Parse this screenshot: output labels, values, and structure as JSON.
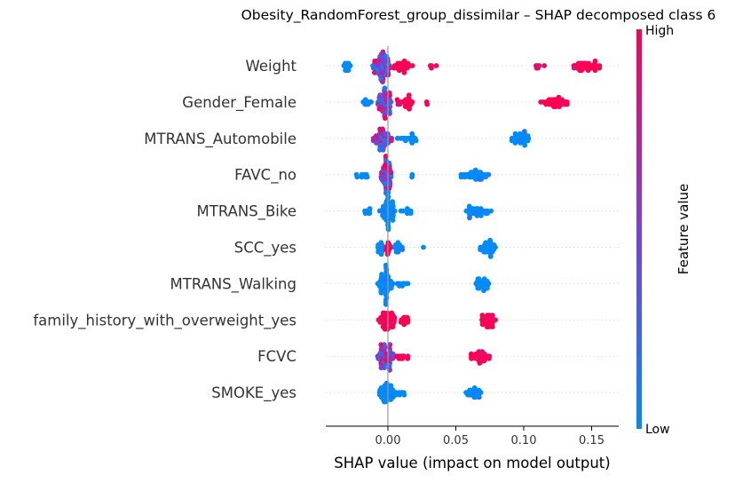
{
  "chart_data": {
    "type": "scatter",
    "subtype": "shap-beeswarm",
    "title": "Obesity_RandomForest_group_dissimilar – SHAP decomposed class 6",
    "xlabel": "SHAP value (impact on model output)",
    "ylabel": "",
    "xlim": [
      -0.045,
      0.165
    ],
    "x_ticks": [
      0.0,
      0.05,
      0.1,
      0.15
    ],
    "x_tick_labels": [
      "0.00",
      "0.05",
      "0.10",
      "0.15"
    ],
    "colorbar": {
      "label": "Feature value",
      "high_label": "High",
      "low_label": "Low",
      "low_color": "#008bfb",
      "high_color": "#ff0052"
    },
    "grid": false,
    "zero_line": true,
    "features": [
      {
        "name": "Weight",
        "clusters": [
          {
            "min": -0.034,
            "max": -0.026,
            "n": 14,
            "color": "low"
          },
          {
            "min": -0.012,
            "max": 0.003,
            "n": 80,
            "color": "mixed"
          },
          {
            "min": 0.003,
            "max": 0.018,
            "n": 26,
            "color": "high"
          },
          {
            "min": 0.025,
            "max": 0.041,
            "n": 4,
            "color": "high"
          },
          {
            "min": 0.104,
            "max": 0.118,
            "n": 6,
            "color": "high"
          },
          {
            "min": 0.133,
            "max": 0.157,
            "n": 40,
            "color": "high"
          }
        ]
      },
      {
        "name": "Gender_Female",
        "clusters": [
          {
            "min": -0.02,
            "max": -0.01,
            "n": 10,
            "color": "low"
          },
          {
            "min": -0.008,
            "max": 0.004,
            "n": 60,
            "color": "mixed"
          },
          {
            "min": 0.004,
            "max": 0.022,
            "n": 22,
            "color": "high"
          },
          {
            "min": 0.027,
            "max": 0.033,
            "n": 2,
            "color": "high"
          },
          {
            "min": 0.112,
            "max": 0.135,
            "n": 40,
            "color": "high"
          }
        ]
      },
      {
        "name": "MTRANS_Automobile",
        "clusters": [
          {
            "min": -0.012,
            "max": 0.003,
            "n": 55,
            "color": "mixed"
          },
          {
            "min": 0.005,
            "max": 0.026,
            "n": 18,
            "color": "low"
          },
          {
            "min": 0.09,
            "max": 0.106,
            "n": 32,
            "color": "low"
          }
        ]
      },
      {
        "name": "FAVC_no",
        "clusters": [
          {
            "min": -0.026,
            "max": -0.012,
            "n": 8,
            "color": "low"
          },
          {
            "min": -0.006,
            "max": 0.004,
            "n": 60,
            "color": "mixed"
          },
          {
            "min": 0.016,
            "max": 0.02,
            "n": 2,
            "color": "low"
          },
          {
            "min": 0.052,
            "max": 0.076,
            "n": 35,
            "color": "low"
          }
        ]
      },
      {
        "name": "MTRANS_Bike",
        "clusters": [
          {
            "min": -0.022,
            "max": -0.01,
            "n": 8,
            "color": "low"
          },
          {
            "min": -0.006,
            "max": 0.006,
            "n": 60,
            "color": "low"
          },
          {
            "min": 0.008,
            "max": 0.02,
            "n": 8,
            "color": "low"
          },
          {
            "min": 0.055,
            "max": 0.076,
            "n": 35,
            "color": "low"
          }
        ]
      },
      {
        "name": "SCC_yes",
        "clusters": [
          {
            "min": -0.01,
            "max": 0.0,
            "n": 20,
            "color": "low"
          },
          {
            "min": -0.004,
            "max": 0.004,
            "n": 12,
            "color": "high"
          },
          {
            "min": 0.003,
            "max": 0.012,
            "n": 16,
            "color": "low"
          },
          {
            "min": 0.025,
            "max": 0.028,
            "n": 1,
            "color": "low"
          },
          {
            "min": 0.068,
            "max": 0.08,
            "n": 35,
            "color": "low"
          }
        ]
      },
      {
        "name": "MTRANS_Walking",
        "clusters": [
          {
            "min": -0.008,
            "max": 0.004,
            "n": 60,
            "color": "low"
          },
          {
            "min": 0.005,
            "max": 0.016,
            "n": 8,
            "color": "low"
          },
          {
            "min": 0.063,
            "max": 0.076,
            "n": 30,
            "color": "low"
          }
        ]
      },
      {
        "name": "family_history_with_overweight_yes",
        "clusters": [
          {
            "min": -0.008,
            "max": 0.006,
            "n": 55,
            "color": "high"
          },
          {
            "min": 0.006,
            "max": 0.017,
            "n": 14,
            "color": "high"
          },
          {
            "min": 0.067,
            "max": 0.08,
            "n": 32,
            "color": "high"
          }
        ]
      },
      {
        "name": "FCVC",
        "clusters": [
          {
            "min": -0.008,
            "max": 0.006,
            "n": 60,
            "color": "mixed"
          },
          {
            "min": 0.006,
            "max": 0.016,
            "n": 10,
            "color": "high"
          },
          {
            "min": 0.059,
            "max": 0.076,
            "n": 32,
            "color": "high"
          }
        ]
      },
      {
        "name": "SMOKE_yes",
        "clusters": [
          {
            "min": -0.008,
            "max": 0.006,
            "n": 55,
            "color": "low"
          },
          {
            "min": 0.007,
            "max": 0.015,
            "n": 6,
            "color": "low"
          },
          {
            "min": 0.057,
            "max": 0.07,
            "n": 28,
            "color": "low"
          }
        ]
      }
    ]
  }
}
